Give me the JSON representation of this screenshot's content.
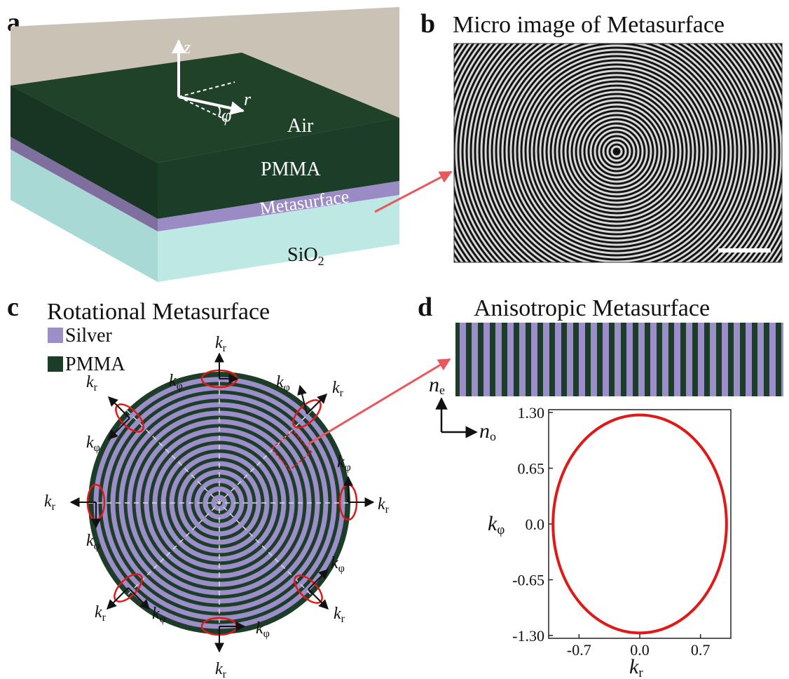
{
  "panels": {
    "a": {
      "letter": "a",
      "layers": {
        "air": "Air",
        "pmma": "PMMA",
        "meta": "Metasurface",
        "sio2": "SiO",
        "sio2_sub": "2"
      },
      "axes": {
        "z": "z",
        "r": "r",
        "phi": "φ"
      }
    },
    "b": {
      "letter": "b",
      "title": "Micro image of Metasurface"
    },
    "c": {
      "letter": "c",
      "title": "Rotational Metasurface",
      "legend": [
        {
          "label": "Silver",
          "color": "#9c8ec8"
        },
        {
          "label": "PMMA",
          "color": "#1c3d27"
        }
      ],
      "k_symbol": "k",
      "sub_r": "r",
      "sub_phi": "φ"
    },
    "d": {
      "letter": "d",
      "title": "Anisotropic Metasurface",
      "n_symbol": "n",
      "sub_e": "e",
      "sub_o": "o",
      "ylabel": {
        "k": "k",
        "sub": "φ"
      },
      "xlabel": {
        "k": "k",
        "sub": "r"
      }
    }
  },
  "colors": {
    "air": "#c7c0b3",
    "pmma": "#1c3d27",
    "metasurface": "#9c8ec8",
    "sio2": "#b9e6e2",
    "ellipse": "#e01818",
    "arrow": "#e8585c"
  },
  "chart_data": {
    "type": "line",
    "series": [
      {
        "shape": "ellipse",
        "kr_semi_axis": 1.0,
        "kphi_semi_axis": 1.27
      }
    ],
    "xticks": [
      "-0.7",
      "0.0",
      "0.7"
    ],
    "yticks": [
      "1.30",
      "0.65",
      "0.0",
      "-0.65",
      "-1.30"
    ],
    "xlim": [
      -1.05,
      1.05
    ],
    "ylim": [
      -1.3,
      1.3
    ],
    "xlabel": "kr",
    "ylabel": "kφ"
  }
}
